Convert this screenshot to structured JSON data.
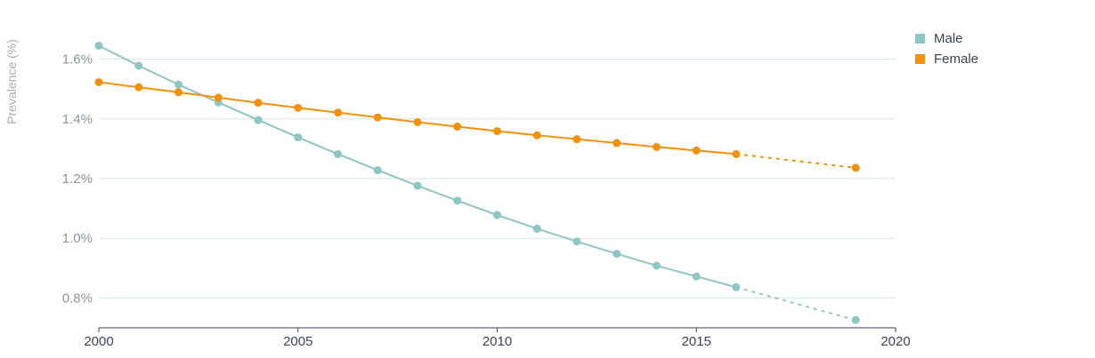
{
  "chart_data": {
    "type": "line",
    "ylabel": "Prevalence (%)",
    "xlim": [
      2000,
      2020
    ],
    "ylim": [
      0.7,
      1.7
    ],
    "x_ticks": [
      "2000",
      "2005",
      "2010",
      "2015",
      "2020"
    ],
    "y_ticks": [
      {
        "value": 0.8,
        "label": "0.8%"
      },
      {
        "value": 1.0,
        "label": "1.0%"
      },
      {
        "value": 1.2,
        "label": "1.2%"
      },
      {
        "value": 1.4,
        "label": "1.4%"
      },
      {
        "value": 1.6,
        "label": "1.6%"
      }
    ],
    "grid": "horizontal",
    "legend_position": "top-right",
    "series": [
      {
        "name": "Male",
        "color": "#8dc6c4",
        "x": [
          2000,
          2001,
          2002,
          2003,
          2004,
          2005,
          2006,
          2007,
          2008,
          2009,
          2010,
          2011,
          2012,
          2013,
          2014,
          2015,
          2016,
          2019
        ],
        "y": [
          1.645,
          1.578,
          1.515,
          1.455,
          1.396,
          1.338,
          1.282,
          1.228,
          1.176,
          1.126,
          1.078,
          1.032,
          0.989,
          0.948,
          0.908,
          0.872,
          0.836,
          0.726
        ],
        "projected_from": 2016
      },
      {
        "name": "Female",
        "color": "#f0920e",
        "x": [
          2000,
          2001,
          2002,
          2003,
          2004,
          2005,
          2006,
          2007,
          2008,
          2009,
          2010,
          2011,
          2012,
          2013,
          2014,
          2015,
          2016,
          2019
        ],
        "y": [
          1.523,
          1.506,
          1.489,
          1.471,
          1.454,
          1.437,
          1.421,
          1.405,
          1.389,
          1.374,
          1.359,
          1.345,
          1.332,
          1.319,
          1.306,
          1.294,
          1.282,
          1.236
        ],
        "projected_from": 2016
      }
    ]
  }
}
